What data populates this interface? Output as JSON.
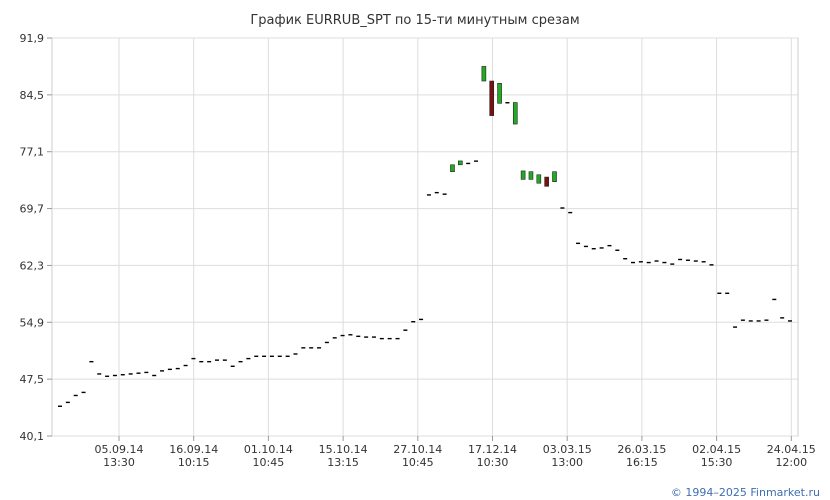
{
  "chart_data": {
    "type": "candlestick",
    "title": "График EURRUB_SPT по 15-ти минутным срезам",
    "ylim": [
      40.1,
      91.9
    ],
    "y_ticks": [
      "91,9",
      "84,5",
      "77,1",
      "69,7",
      "62,3",
      "54,9",
      "47,5",
      "40,1"
    ],
    "x_ticks": [
      {
        "date": "05.09.14",
        "time": "13:30"
      },
      {
        "date": "16.09.14",
        "time": "10:15"
      },
      {
        "date": "01.10.14",
        "time": "10:45"
      },
      {
        "date": "15.10.14",
        "time": "13:15"
      },
      {
        "date": "27.10.14",
        "time": "10:45"
      },
      {
        "date": "17.12.14",
        "time": "10:30"
      },
      {
        "date": "03.03.15",
        "time": "13:00"
      },
      {
        "date": "26.03.15",
        "time": "16:15"
      },
      {
        "date": "02.04.15",
        "time": "15:30"
      },
      {
        "date": "24.04.15",
        "time": "12:00"
      }
    ],
    "grid": true,
    "up_color": "#22aa22",
    "down_color": "#7a1010",
    "flat_color": "#000000",
    "candles": [
      [
        44.0,
        44.0
      ],
      [
        44.5,
        44.5
      ],
      [
        45.4,
        45.4
      ],
      [
        45.8,
        45.8
      ],
      [
        49.8,
        49.8
      ],
      [
        48.2,
        48.2
      ],
      [
        47.9,
        47.9
      ],
      [
        48.0,
        48.0
      ],
      [
        48.1,
        48.1
      ],
      [
        48.2,
        48.2
      ],
      [
        48.3,
        48.3
      ],
      [
        48.4,
        48.4
      ],
      [
        48.0,
        48.0
      ],
      [
        48.6,
        48.6
      ],
      [
        48.8,
        48.8
      ],
      [
        48.9,
        48.9
      ],
      [
        49.3,
        49.3
      ],
      [
        50.2,
        50.2
      ],
      [
        49.8,
        49.8
      ],
      [
        49.8,
        49.8
      ],
      [
        50.0,
        50.0
      ],
      [
        50.0,
        50.0
      ],
      [
        49.2,
        49.2
      ],
      [
        49.8,
        49.8
      ],
      [
        50.2,
        50.2
      ],
      [
        50.5,
        50.5
      ],
      [
        50.5,
        50.5
      ],
      [
        50.5,
        50.5
      ],
      [
        50.5,
        50.5
      ],
      [
        50.5,
        50.5
      ],
      [
        50.8,
        50.8
      ],
      [
        51.6,
        51.6
      ],
      [
        51.6,
        51.6
      ],
      [
        51.6,
        51.6
      ],
      [
        52.3,
        52.3
      ],
      [
        52.9,
        52.9
      ],
      [
        53.2,
        53.2
      ],
      [
        53.3,
        53.3
      ],
      [
        53.1,
        53.1
      ],
      [
        53.0,
        53.0
      ],
      [
        53.0,
        53.0
      ],
      [
        52.8,
        52.8
      ],
      [
        52.8,
        52.8
      ],
      [
        52.8,
        52.8
      ],
      [
        53.9,
        53.9
      ],
      [
        55.0,
        55.0
      ],
      [
        55.3,
        55.3
      ],
      [
        71.5,
        71.5
      ],
      [
        71.8,
        71.8
      ],
      [
        71.6,
        71.6
      ],
      [
        74.5,
        75.4
      ],
      [
        75.4,
        75.9
      ],
      [
        75.6,
        75.6
      ],
      [
        75.9,
        75.9
      ],
      [
        86.3,
        88.2
      ],
      [
        86.3,
        81.8
      ],
      [
        83.4,
        86.0
      ],
      [
        83.5,
        83.5
      ],
      [
        80.7,
        83.5
      ],
      [
        73.5,
        74.6
      ],
      [
        73.5,
        74.5
      ],
      [
        73.0,
        74.1
      ],
      [
        73.8,
        72.6
      ],
      [
        73.2,
        74.5
      ],
      [
        69.8,
        69.8
      ],
      [
        69.2,
        69.2
      ],
      [
        65.2,
        65.2
      ],
      [
        64.8,
        64.8
      ],
      [
        64.5,
        64.5
      ],
      [
        64.6,
        64.6
      ],
      [
        64.9,
        64.9
      ],
      [
        64.3,
        64.3
      ],
      [
        63.2,
        63.2
      ],
      [
        62.7,
        62.7
      ],
      [
        62.8,
        62.8
      ],
      [
        62.7,
        62.7
      ],
      [
        62.9,
        62.9
      ],
      [
        62.7,
        62.7
      ],
      [
        62.5,
        62.5
      ],
      [
        63.1,
        63.1
      ],
      [
        63.0,
        63.0
      ],
      [
        62.9,
        62.9
      ],
      [
        62.8,
        62.8
      ],
      [
        62.4,
        62.4
      ],
      [
        58.7,
        58.7
      ],
      [
        58.7,
        58.7
      ],
      [
        54.3,
        54.3
      ],
      [
        55.2,
        55.2
      ],
      [
        55.1,
        55.1
      ],
      [
        55.1,
        55.1
      ],
      [
        55.2,
        55.2
      ],
      [
        57.9,
        57.9
      ],
      [
        55.5,
        55.5
      ],
      [
        55.1,
        55.1
      ]
    ]
  },
  "footer": {
    "copyright": "© 1994–2025 Finmarket.ru"
  }
}
